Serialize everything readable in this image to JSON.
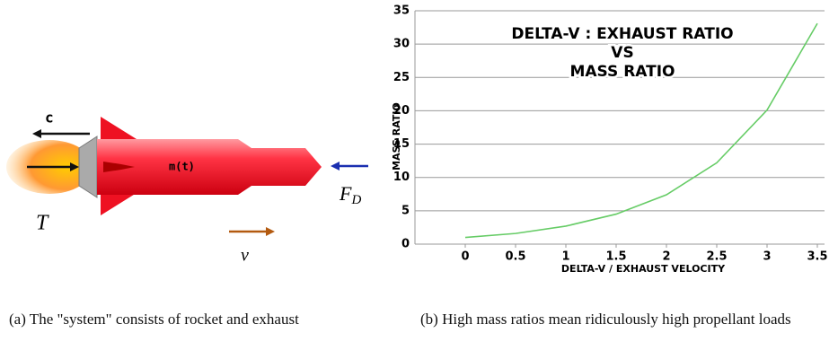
{
  "diagram": {
    "labels": {
      "exhaust_velocity": "c",
      "mass": "m(t)",
      "thrust": "T",
      "drag": {
        "main": "F",
        "sub": "D"
      },
      "velocity": "v"
    }
  },
  "chart_data": {
    "type": "line",
    "title": [
      "DELTA-V : EXHAUST RATIO",
      "VS",
      "MASS RATIO"
    ],
    "x_label": "DELTA-V / EXHAUST VELOCITY",
    "y_label": "MASS RATIO",
    "x": [
      0,
      0.5,
      1,
      1.5,
      2,
      2.5,
      3,
      3.5
    ],
    "values": [
      1,
      1.6,
      2.7,
      4.5,
      7.4,
      12.2,
      20.1,
      33.1
    ],
    "color": "#66cc66",
    "xlim": [
      -0.5,
      3.5
    ],
    "xticks": [
      0,
      0.5,
      1,
      1.5,
      2,
      2.5,
      3,
      3.5
    ],
    "ylim": [
      0,
      35
    ],
    "yticks": [
      0,
      5,
      10,
      15,
      20,
      25,
      30,
      35
    ],
    "grid": true
  },
  "captions": [
    "(a) The \"system\" consists of rocket and exhaust",
    "(b) High mass ratios mean ridiculously high propellant loads"
  ]
}
